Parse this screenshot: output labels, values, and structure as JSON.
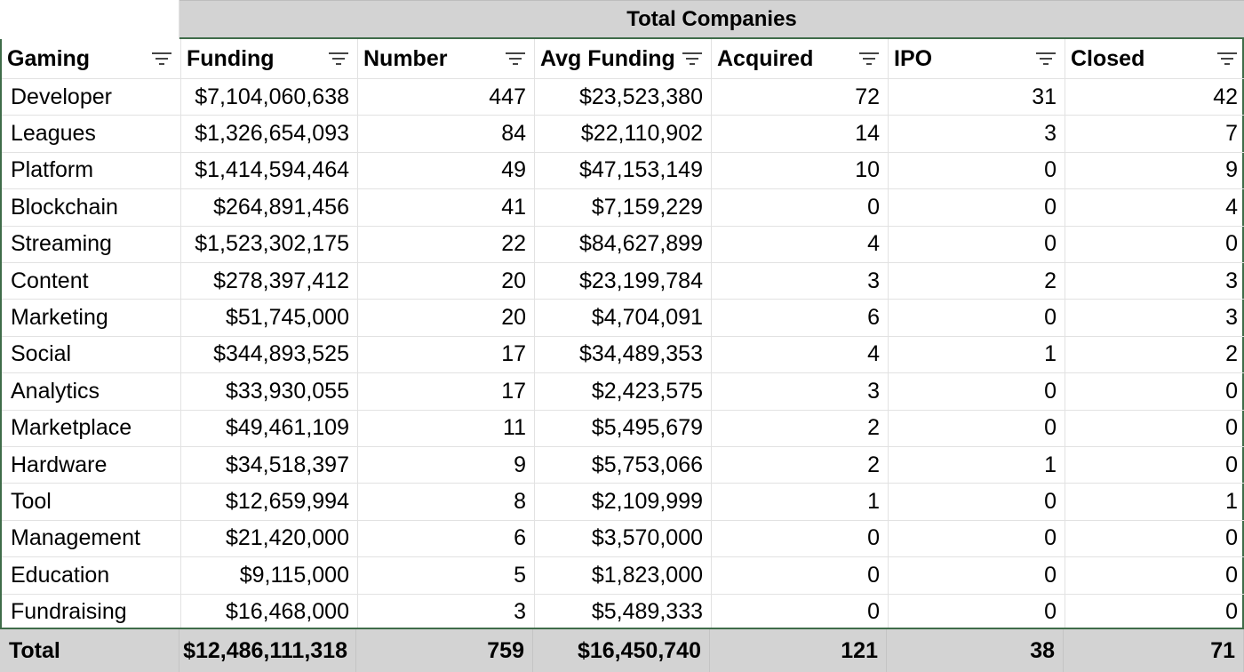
{
  "title": "Total Companies",
  "headers": [
    "Gaming",
    "Funding",
    "Number",
    "Avg Funding",
    "Acquired",
    "IPO",
    "Closed"
  ],
  "rows": [
    [
      "Developer",
      "$7,104,060,638",
      "447",
      "$23,523,380",
      "72",
      "31",
      "42"
    ],
    [
      "Leagues",
      "$1,326,654,093",
      "84",
      "$22,110,902",
      "14",
      "3",
      "7"
    ],
    [
      "Platform",
      "$1,414,594,464",
      "49",
      "$47,153,149",
      "10",
      "0",
      "9"
    ],
    [
      "Blockchain",
      "$264,891,456",
      "41",
      "$7,159,229",
      "0",
      "0",
      "4"
    ],
    [
      "Streaming",
      "$1,523,302,175",
      "22",
      "$84,627,899",
      "4",
      "0",
      "0"
    ],
    [
      "Content",
      "$278,397,412",
      "20",
      "$23,199,784",
      "3",
      "2",
      "3"
    ],
    [
      "Marketing",
      "$51,745,000",
      "20",
      "$4,704,091",
      "6",
      "0",
      "3"
    ],
    [
      "Social",
      "$344,893,525",
      "17",
      "$34,489,353",
      "4",
      "1",
      "2"
    ],
    [
      "Analytics",
      "$33,930,055",
      "17",
      "$2,423,575",
      "3",
      "0",
      "0"
    ],
    [
      "Marketplace",
      "$49,461,109",
      "11",
      "$5,495,679",
      "2",
      "0",
      "0"
    ],
    [
      "Hardware",
      "$34,518,397",
      "9",
      "$5,753,066",
      "2",
      "1",
      "0"
    ],
    [
      "Tool",
      "$12,659,994",
      "8",
      "$2,109,999",
      "1",
      "0",
      "1"
    ],
    [
      "Management",
      "$21,420,000",
      "6",
      "$3,570,000",
      "0",
      "0",
      "0"
    ],
    [
      "Education",
      "$9,115,000",
      "5",
      "$1,823,000",
      "0",
      "0",
      "0"
    ],
    [
      "Fundraising",
      "$16,468,000",
      "3",
      "$5,489,333",
      "0",
      "0",
      "0"
    ]
  ],
  "total": [
    "Total",
    "$12,486,111,318",
    "759",
    "$16,450,740",
    "121",
    "38",
    "71"
  ],
  "colors": {
    "header_band": "#d3d3d3",
    "frame_border": "#3f6c49",
    "grid": "#e2e2e2"
  },
  "icons": {
    "filter": "filter-icon"
  }
}
